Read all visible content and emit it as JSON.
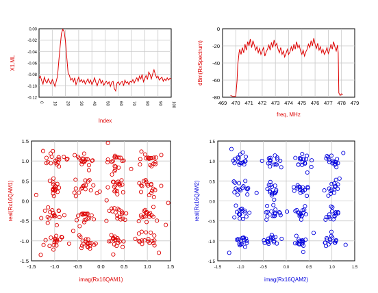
{
  "chart_data": [
    {
      "id": "xl",
      "type": "line",
      "xlabel": "Index",
      "ylabel": "X1.ML",
      "ylim": [
        -0.12,
        0.0
      ],
      "ytick_labels": [
        "0.00",
        "-0.02",
        "-0.04",
        "-0.06",
        "-0.08",
        "-0.10",
        "-0.12"
      ],
      "xtick_labels": [
        "0",
        "10",
        "20",
        "30",
        "40",
        "50",
        "60",
        "70",
        "80",
        "90",
        "100"
      ],
      "grid": true,
      "color": "#dd0000",
      "series": [
        {
          "x": [
            0,
            1,
            2,
            3,
            4,
            5,
            6,
            7,
            8,
            9,
            10,
            11,
            12,
            13,
            14,
            15,
            16,
            17,
            18,
            19,
            20,
            21,
            22,
            23,
            24,
            25,
            26,
            27,
            28,
            29,
            30,
            31,
            32,
            33,
            34,
            35,
            36,
            37,
            38,
            39,
            40,
            41,
            42,
            43,
            44,
            45,
            46,
            47,
            48,
            49,
            50,
            51,
            52,
            53,
            54,
            55,
            56,
            57,
            58,
            59,
            60,
            61,
            62,
            63,
            64,
            65,
            66,
            67,
            68,
            69,
            70,
            71,
            72,
            73,
            74,
            75,
            76,
            77,
            78,
            79,
            80,
            81,
            82,
            83,
            84,
            85,
            86,
            87,
            88,
            89,
            90,
            91,
            92,
            93,
            94,
            95,
            96,
            97,
            98,
            99,
            100
          ],
          "values": [
            -0.087,
            -0.083,
            -0.091,
            -0.097,
            -0.085,
            -0.092,
            -0.095,
            -0.088,
            -0.093,
            -0.097,
            -0.089,
            -0.094,
            -0.101,
            -0.092,
            -0.083,
            -0.055,
            -0.03,
            -0.008,
            -0.001,
            -0.005,
            -0.022,
            -0.05,
            -0.078,
            -0.082,
            -0.09,
            -0.087,
            -0.093,
            -0.086,
            -0.098,
            -0.091,
            -0.085,
            -0.093,
            -0.089,
            -0.094,
            -0.09,
            -0.097,
            -0.092,
            -0.088,
            -0.095,
            -0.09,
            -0.098,
            -0.093,
            -0.086,
            -0.094,
            -0.1,
            -0.092,
            -0.088,
            -0.096,
            -0.091,
            -0.099,
            -0.095,
            -0.092,
            -0.097,
            -0.093,
            -0.101,
            -0.094,
            -0.092,
            -0.105,
            -0.109,
            -0.095,
            -0.093,
            -0.098,
            -0.094,
            -0.092,
            -0.1,
            -0.09,
            -0.095,
            -0.093,
            -0.098,
            -0.092,
            -0.094,
            -0.089,
            -0.095,
            -0.09,
            -0.086,
            -0.092,
            -0.083,
            -0.088,
            -0.08,
            -0.093,
            -0.087,
            -0.082,
            -0.089,
            -0.076,
            -0.08,
            -0.088,
            -0.079,
            -0.072,
            -0.08,
            -0.086,
            -0.083,
            -0.09,
            -0.087,
            -0.085,
            -0.092,
            -0.088,
            -0.091,
            -0.086,
            -0.09,
            -0.087,
            -0.088
          ]
        }
      ]
    },
    {
      "id": "spec",
      "type": "line",
      "xlabel": "freq, MHz",
      "ylabel": "dBm(RxSpectrum)",
      "xlim": [
        469,
        479
      ],
      "ylim": [
        -80,
        0
      ],
      "xtick_labels": [
        "469",
        "470",
        "471",
        "472",
        "473",
        "474",
        "475",
        "476",
        "477",
        "478",
        "479"
      ],
      "ytick_labels": [
        "0",
        "-20",
        "-40",
        "-60",
        "-80"
      ],
      "grid": true,
      "color": "#dd0000",
      "series": [
        {
          "x": [
            469.6,
            469.8,
            470.0,
            470.1,
            470.15,
            470.2,
            470.25,
            470.3,
            470.4,
            470.5,
            470.6,
            470.7,
            470.8,
            470.9,
            471.0,
            471.1,
            471.2,
            471.3,
            471.4,
            471.5,
            471.6,
            471.7,
            471.8,
            471.9,
            472.0,
            472.1,
            472.2,
            472.3,
            472.4,
            472.5,
            472.6,
            472.7,
            472.8,
            472.9,
            473.0,
            473.1,
            473.2,
            473.3,
            473.4,
            473.5,
            473.6,
            473.7,
            473.8,
            473.9,
            474.0,
            474.1,
            474.2,
            474.3,
            474.4,
            474.5,
            474.6,
            474.7,
            474.8,
            474.9,
            475.0,
            475.1,
            475.2,
            475.3,
            475.4,
            475.5,
            475.6,
            475.7,
            475.8,
            475.9,
            476.0,
            476.1,
            476.2,
            476.3,
            476.4,
            476.5,
            476.6,
            476.7,
            476.8,
            476.9,
            477.0,
            477.1,
            477.2,
            477.3,
            477.4,
            477.5,
            477.6,
            477.7,
            477.75,
            477.8,
            477.9,
            478.0,
            478.1
          ],
          "values": [
            -78,
            -79,
            -79,
            -60,
            -42,
            -35,
            -28,
            -24,
            -30,
            -22,
            -28,
            -18,
            -25,
            -15,
            -20,
            -12,
            -22,
            -14,
            -19,
            -25,
            -21,
            -28,
            -23,
            -30,
            -26,
            -22,
            -32,
            -27,
            -24,
            -19,
            -25,
            -16,
            -22,
            -13,
            -20,
            -17,
            -24,
            -28,
            -22,
            -30,
            -26,
            -33,
            -29,
            -24,
            -30,
            -27,
            -21,
            -26,
            -18,
            -24,
            -15,
            -22,
            -19,
            -26,
            -30,
            -25,
            -32,
            -27,
            -24,
            -18,
            -22,
            -14,
            -20,
            -11,
            -18,
            -23,
            -17,
            -25,
            -21,
            -28,
            -24,
            -30,
            -27,
            -22,
            -29,
            -25,
            -18,
            -24,
            -15,
            -21,
            -26,
            -19,
            -28,
            -75,
            -78,
            -76,
            -77
          ]
        }
      ]
    },
    {
      "id": "rx1",
      "type": "scatter",
      "xlabel": "imag(Rx16QAM1)",
      "ylabel": "real(Rx16QAM1)",
      "xlim": [
        -1.5,
        1.5
      ],
      "ylim": [
        -1.5,
        1.5
      ],
      "xtick_labels": [
        "-1.5",
        "-1.0",
        "-0.5",
        "0.0",
        "0.5",
        "1.0",
        "1.5"
      ],
      "ytick_labels": [
        "1.5",
        "1.0",
        "0.5",
        "0.0",
        "-0.5",
        "-1.0",
        "-1.5"
      ],
      "grid": true,
      "color": "#dd0000",
      "constellation_centers": [
        -1.0,
        -0.33,
        0.33,
        1.0
      ],
      "spread": 0.11,
      "points_per_cluster": 18,
      "outliers": [
        [
          0.15,
          1.45
        ],
        [
          -1.25,
          1.25
        ],
        [
          1.3,
          1.15
        ],
        [
          -1.4,
          0.15
        ],
        [
          1.45,
          -0.05
        ],
        [
          -0.6,
          -0.75
        ],
        [
          0.65,
          0.8
        ],
        [
          -1.3,
          -1.35
        ],
        [
          1.25,
          -1.3
        ],
        [
          -0.15,
          -1.1
        ],
        [
          1.4,
          -0.6
        ],
        [
          -1.15,
          -0.55
        ]
      ]
    },
    {
      "id": "rx2",
      "type": "scatter",
      "xlabel": "imag(Rx16QAM2)",
      "ylabel": "real(Rx16QAM2)",
      "xlim": [
        -1.5,
        1.5
      ],
      "ylim": [
        -1.5,
        1.5
      ],
      "xtick_labels": [
        "-1.5",
        "-1.0",
        "-0.5",
        "0.0",
        "0.5",
        "1.0",
        "1.5"
      ],
      "ytick_labels": [
        "1.5",
        "1.0",
        "0.5",
        "0.0",
        "-0.5",
        "-1.0",
        "-1.5"
      ],
      "grid": true,
      "color": "#0000dd",
      "constellation_centers": [
        -1.0,
        -0.33,
        0.33,
        1.0
      ],
      "spread": 0.09,
      "points_per_cluster": 16,
      "outliers": [
        [
          -1.2,
          1.3
        ],
        [
          0.55,
          0.85
        ],
        [
          1.25,
          1.2
        ],
        [
          -0.1,
          -0.95
        ],
        [
          1.3,
          -1.1
        ],
        [
          -1.25,
          -1.3
        ],
        [
          0.6,
          -0.8
        ],
        [
          -0.65,
          0.2
        ]
      ]
    }
  ]
}
